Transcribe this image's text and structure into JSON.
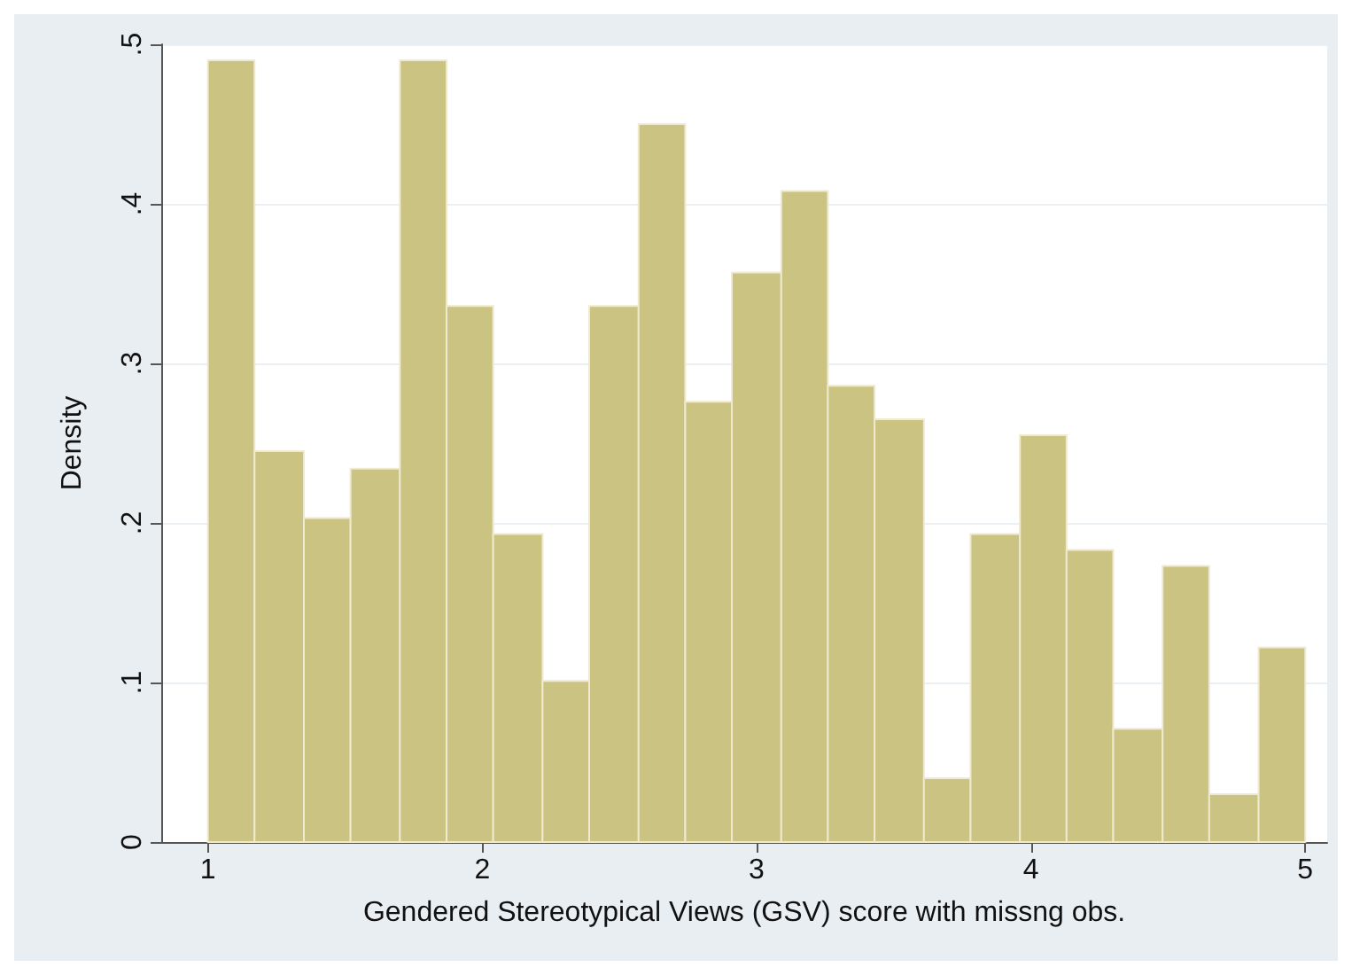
{
  "chart_data": {
    "type": "histogram",
    "xlabel": "Gendered Stereotypical Views (GSV) score with missng obs.",
    "ylabel": "Density",
    "bins": [
      1,
      1.17,
      1.35,
      1.52,
      1.7,
      1.87,
      2.04,
      2.22,
      2.39,
      2.57,
      2.74,
      2.91,
      3.09,
      3.26,
      3.43,
      3.61,
      3.78,
      3.96,
      4.13,
      4.3,
      4.48,
      4.65,
      4.83,
      5
    ],
    "values": [
      0.49,
      0.245,
      0.203,
      0.234,
      0.49,
      0.336,
      0.193,
      0.101,
      0.336,
      0.45,
      0.276,
      0.357,
      0.408,
      0.286,
      0.265,
      0.04,
      0.193,
      0.255,
      0.183,
      0.071,
      0.173,
      0.03,
      0.122
    ],
    "color": "#cbc381",
    "xlim": [
      0.83,
      5.08
    ],
    "ylim": [
      0,
      0.5
    ],
    "xticks": [
      1,
      2,
      3,
      4,
      5
    ],
    "yticks": [
      0,
      {
        "value": 0.1,
        "label": ".1"
      },
      {
        "value": 0.2,
        "label": ".2"
      },
      {
        "value": 0.3,
        "label": ".3"
      },
      {
        "value": 0.4,
        "label": ".4"
      },
      {
        "value": 0.5,
        "label": ".5"
      }
    ],
    "grid": "y"
  }
}
